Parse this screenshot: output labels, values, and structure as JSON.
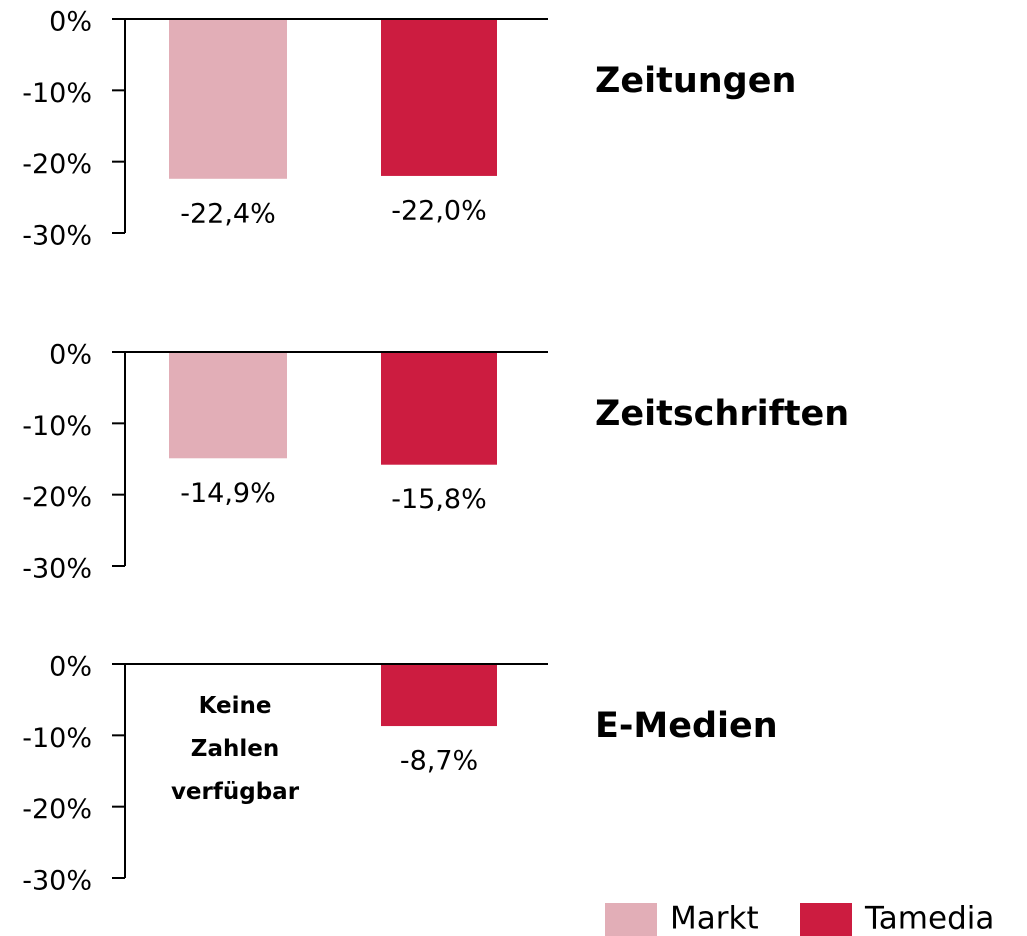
{
  "chart_data": [
    {
      "type": "bar",
      "title": "Zeitungen",
      "categories": [
        null
      ],
      "series": [
        {
          "name": "Markt",
          "color": "#e2aeb7",
          "values": [
            -22.4
          ],
          "value_labels": [
            "-22,4%"
          ]
        },
        {
          "name": "Tamedia",
          "color": "#cc1c40",
          "values": [
            -22.0
          ],
          "value_labels": [
            "-22,0%"
          ]
        }
      ],
      "ylim": [
        -30,
        0
      ],
      "yticks": [
        {
          "value": 0,
          "label": "0%"
        },
        {
          "value": -10,
          "label": "-10%"
        },
        {
          "value": -20,
          "label": "-20%"
        },
        {
          "value": -30,
          "label": "-30%"
        }
      ]
    },
    {
      "type": "bar",
      "title": "Zeitschriften",
      "categories": [
        null
      ],
      "series": [
        {
          "color": "#e2aeb7",
          "values": [
            -14.9
          ],
          "value_labels": [
            "-14,9%"
          ]
        },
        {
          "color": "#cc1c40",
          "values": [
            -15.8
          ],
          "value_labels": [
            "-15,8%"
          ]
        }
      ],
      "ylim": [
        -30,
        0
      ],
      "yticks": [
        {
          "value": 0,
          "label": "0%"
        },
        {
          "value": -10,
          "label": "-10%"
        },
        {
          "value": -20,
          "label": "-20%"
        },
        {
          "value": -30,
          "label": "-30%"
        }
      ]
    },
    {
      "type": "bar",
      "title": "E-Medien",
      "categories": [
        null
      ],
      "series": [
        {
          "color": "#e2aeb7",
          "values": [
            null
          ],
          "value_labels": [
            null
          ]
        },
        {
          "color": "#cc1c40",
          "values": [
            -8.7
          ],
          "value_labels": [
            "-8,7%"
          ]
        }
      ],
      "annotation": "Keine Zahlen verfügbar",
      "ylim": [
        -30,
        0
      ],
      "yticks": [
        {
          "value": 0,
          "label": "0%"
        },
        {
          "value": -10,
          "label": "-10%"
        },
        {
          "value": -20,
          "label": "-20%"
        },
        {
          "value": -30,
          "label": "-30%"
        }
      ]
    }
  ]
}
